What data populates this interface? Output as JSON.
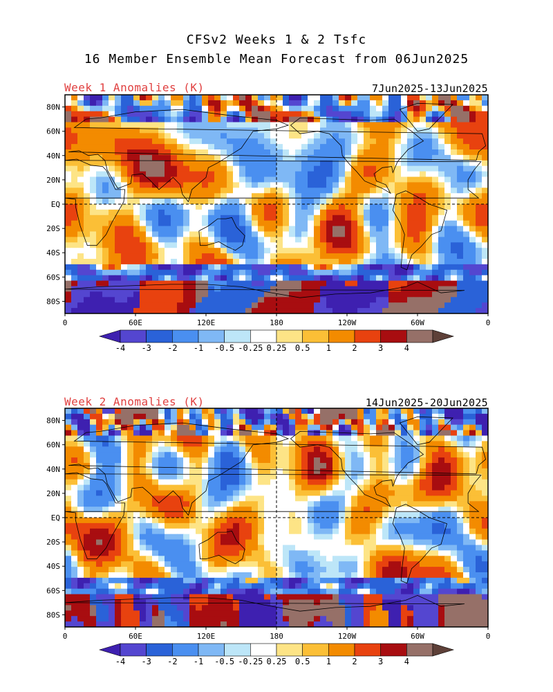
{
  "header": {
    "line1": "CFSv2 Weeks 1 & 2 Tsfc",
    "line2": "16 Member Ensemble Mean Forecast from 06Jun2025"
  },
  "panels": [
    {
      "title": "Week 1 Anomalies (K)",
      "dates": "7Jun2025-13Jun2025",
      "seed": 11
    },
    {
      "title": "Week 2 Anomalies (K)",
      "dates": "14Jun2025-20Jun2025",
      "seed": 29
    }
  ],
  "map": {
    "lat_labels": [
      "80N",
      "60N",
      "40N",
      "20N",
      "EQ",
      "20S",
      "40S",
      "60S",
      "80S"
    ],
    "lon_labels": [
      "0",
      "60E",
      "120E",
      "180",
      "120W",
      "60W",
      "0"
    ]
  },
  "colorbar": {
    "labels": [
      "-4",
      "-3",
      "-2",
      "-1",
      "-0.5",
      "-0.25",
      "0.25",
      "0.5",
      "1",
      "2",
      "3",
      "4"
    ],
    "colors": [
      "#3e20b0",
      "#5446d0",
      "#2a62d8",
      "#4a8ff0",
      "#7fb8f5",
      "#bde6f8",
      "#ffffff",
      "#fde486",
      "#fbbf36",
      "#f38b00",
      "#e8420f",
      "#a80d10",
      "#967068",
      "#5e4038"
    ]
  }
}
